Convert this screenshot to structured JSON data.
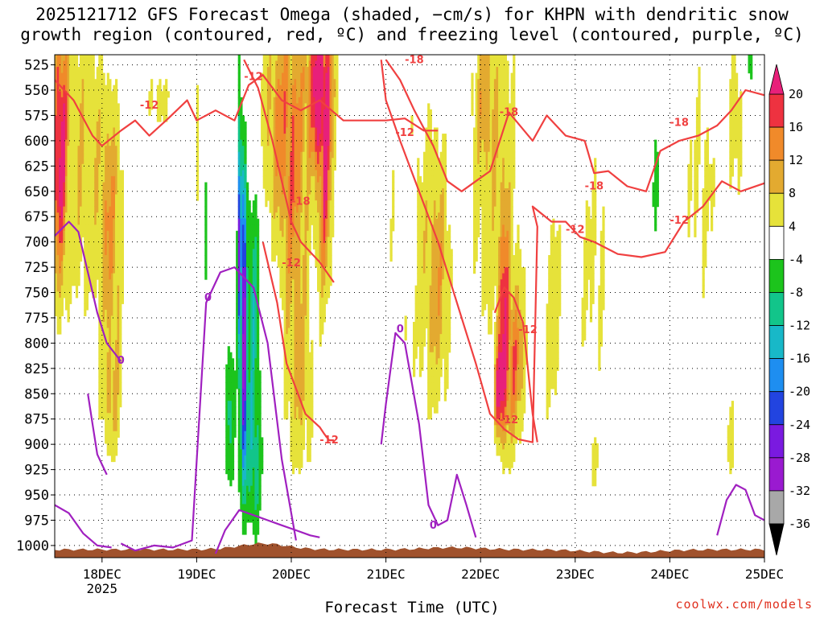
{
  "title_line1": "2025121712 GFS Forecast Omega (shaded, −cm/s) for KHPN with dendritic snow",
  "title_line2": "growth region (contoured, red, ºC) and freezing level (contoured, purple, ºC)",
  "credit": "coolwx.com/models",
  "chart_data": {
    "type": "heatmap",
    "title": "2025121712 GFS Forecast Omega (shaded, −cm/s) for KHPN with dendritic snow growth region (contoured, red, ºC) and freezing level (contoured, purple, ºC)",
    "xlabel": "Forecast Time (UTC)",
    "ylabel": "",
    "x_ticks": [
      "18DEC",
      "19DEC",
      "20DEC",
      "21DEC",
      "22DEC",
      "23DEC",
      "24DEC",
      "25DEC"
    ],
    "x_tick_year": "2025",
    "x_range_days": [
      17.5,
      25.0
    ],
    "y_ticks": [
      525,
      550,
      575,
      600,
      625,
      650,
      675,
      700,
      725,
      750,
      775,
      800,
      825,
      850,
      875,
      900,
      925,
      950,
      975,
      1000
    ],
    "y_range": [
      1012,
      515
    ],
    "grid": true,
    "colorbar": {
      "ticks": [
        20,
        16,
        12,
        8,
        4,
        -4,
        -8,
        -12,
        -16,
        -20,
        -24,
        -28,
        -32,
        -36
      ],
      "bins": [
        {
          "min": 16,
          "max": 20,
          "color": "#ee3240"
        },
        {
          "min": 12,
          "max": 16,
          "color": "#f08a2a"
        },
        {
          "min": 8,
          "max": 12,
          "color": "#e3aa30"
        },
        {
          "min": 4,
          "max": 8,
          "color": "#e6e23a"
        },
        {
          "min": -4,
          "max": 4,
          "color": "#ffffff"
        },
        {
          "min": -8,
          "max": -4,
          "color": "#1cc41c"
        },
        {
          "min": -12,
          "max": -8,
          "color": "#12c58a"
        },
        {
          "min": -16,
          "max": -12,
          "color": "#18b8c8"
        },
        {
          "min": -20,
          "max": -16,
          "color": "#1e8ef0"
        },
        {
          "min": -24,
          "max": -20,
          "color": "#2244e0"
        },
        {
          "min": -28,
          "max": -24,
          "color": "#7a1ae0"
        },
        {
          "min": -32,
          "max": -28,
          "color": "#9a1ad0"
        },
        {
          "min": -36,
          "max": -32,
          "color": "#a8a8a8"
        }
      ],
      "over_color": "#e8207a",
      "under_color": "#000000"
    },
    "series": [
      {
        "name": "Dendritic growth region (-12/-18 ºC)",
        "color": "#f04040",
        "contour_labels": [
          {
            "text": "-12",
            "x": 18.5,
            "y": 565
          },
          {
            "text": "-12",
            "x": 19.6,
            "y": 537
          },
          {
            "text": "-18",
            "x": 21.3,
            "y": 520
          },
          {
            "text": "-12",
            "x": 21.2,
            "y": 592
          },
          {
            "text": "-18",
            "x": 22.3,
            "y": 572
          },
          {
            "text": "-18",
            "x": 20.1,
            "y": 660
          },
          {
            "text": "-12",
            "x": 20.0,
            "y": 721
          },
          {
            "text": "-12",
            "x": 20.4,
            "y": 896
          },
          {
            "text": "-12",
            "x": 22.5,
            "y": 787
          },
          {
            "text": "-12",
            "x": 22.3,
            "y": 876
          },
          {
            "text": "-12",
            "x": 23.0,
            "y": 688
          },
          {
            "text": "-18",
            "x": 23.2,
            "y": 645
          },
          {
            "text": "-18",
            "x": 24.1,
            "y": 582
          },
          {
            "text": "-12",
            "x": 24.1,
            "y": 679
          }
        ],
        "contours": [
          {
            "x": [
              17.5,
              17.7,
              17.9,
              18.0,
              18.2,
              18.35,
              18.5,
              18.7,
              18.9,
              19.0,
              19.2,
              19.4,
              19.55,
              19.7,
              19.9,
              20.1,
              20.3,
              20.55,
              20.8,
              21.0,
              21.2,
              21.4,
              21.55
            ],
            "y": [
              540,
              560,
              595,
              605,
              590,
              580,
              595,
              578,
              560,
              580,
              570,
              580,
              545,
              535,
              560,
              570,
              560,
              580,
              580,
              580,
              578,
              590,
              590
            ]
          },
          {
            "x": [
              19.5,
              19.65,
              19.8,
              19.9,
              20.0,
              20.1,
              20.3,
              20.45
            ],
            "y": [
              520,
              548,
              600,
              640,
              680,
              700,
              720,
              740
            ]
          },
          {
            "x": [
              19.7,
              19.85,
              19.95,
              20.05,
              20.15,
              20.3,
              20.35,
              20.4,
              20.45
            ],
            "y": [
              700,
              760,
              820,
              845,
              870,
              883,
              890,
              896,
              896
            ]
          },
          {
            "x": [
              21.0,
              21.15,
              21.3,
              21.5,
              21.65,
              21.8,
              21.95,
              22.1,
              22.3,
              22.55,
              22.7,
              22.9,
              23.1,
              23.2,
              23.35,
              23.55,
              23.75,
              23.9,
              24.1,
              24.3,
              24.5,
              24.65,
              24.8,
              25.0
            ],
            "y": [
              520,
              540,
              570,
              605,
              640,
              650,
              640,
              630,
              572,
              600,
              575,
              595,
              600,
              632,
              630,
              645,
              650,
              610,
              600,
              595,
              585,
              570,
              550,
              555
            ]
          },
          {
            "x": [
              20.95,
              21.0,
              21.15,
              21.35,
              21.55,
              21.75,
              21.95,
              22.1,
              22.25,
              22.4,
              22.55,
              22.6,
              22.55,
              22.75,
              22.9,
              23.05,
              23.2,
              23.45,
              23.7,
              23.95,
              24.15,
              24.35,
              24.55,
              24.75,
              25.0
            ],
            "y": [
              520,
              560,
              600,
              650,
              700,
              760,
              820,
              870,
              885,
              895,
              898,
              685,
              665,
              680,
              680,
              695,
              700,
              712,
              715,
              710,
              680,
              665,
              640,
              650,
              642
            ]
          },
          {
            "x": [
              22.15,
              22.25,
              22.35,
              22.45,
              22.55,
              22.6
            ],
            "y": [
              770,
              745,
              755,
              780,
              870,
              898
            ]
          }
        ]
      },
      {
        "name": "Freezing level (0 ºC)",
        "color": "#a020c0",
        "contour_labels": [
          {
            "text": "0",
            "x": 18.2,
            "y": 817
          },
          {
            "text": "0",
            "x": 19.12,
            "y": 755
          },
          {
            "text": "0",
            "x": 21.15,
            "y": 786
          },
          {
            "text": "0",
            "x": 21.5,
            "y": 980
          }
        ],
        "contours": [
          {
            "x": [
              17.5,
              17.65,
              17.75,
              17.85,
              17.95,
              18.05,
              18.2
            ],
            "y": [
              694,
              680,
              690,
              730,
              770,
              800,
              818
            ]
          },
          {
            "x": [
              17.85,
              17.9,
              17.95,
              18.05
            ],
            "y": [
              850,
              880,
              910,
              930
            ]
          },
          {
            "x": [
              17.5,
              17.65,
              17.8,
              17.95,
              18.1
            ],
            "y": [
              960,
              968,
              988,
              1000,
              1002
            ]
          },
          {
            "x": [
              18.2,
              18.35,
              18.55,
              18.75,
              18.95,
              19.1,
              19.25,
              19.4,
              19.6,
              19.75,
              19.9,
              20.05
            ],
            "y": [
              998,
              1005,
              1000,
              1002,
              995,
              760,
              730,
              725,
              745,
              800,
              915,
              995
            ]
          },
          {
            "x": [
              19.2,
              19.3,
              19.45,
              19.6,
              19.75,
              19.9,
              20.05,
              20.2,
              20.3
            ],
            "y": [
              1008,
              985,
              965,
              970,
              975,
              980,
              985,
              990,
              992
            ]
          },
          {
            "x": [
              20.95,
              21.0,
              21.1,
              21.2,
              21.35,
              21.45,
              21.55,
              21.65,
              21.75,
              21.85,
              21.95
            ],
            "y": [
              900,
              860,
              790,
              800,
              880,
              960,
              980,
              975,
              930,
              960,
              992
            ]
          },
          {
            "x": [
              24.5,
              24.6,
              24.7,
              24.8,
              24.9,
              25.0
            ],
            "y": [
              990,
              955,
              940,
              945,
              970,
              975
            ]
          }
        ]
      }
    ]
  }
}
